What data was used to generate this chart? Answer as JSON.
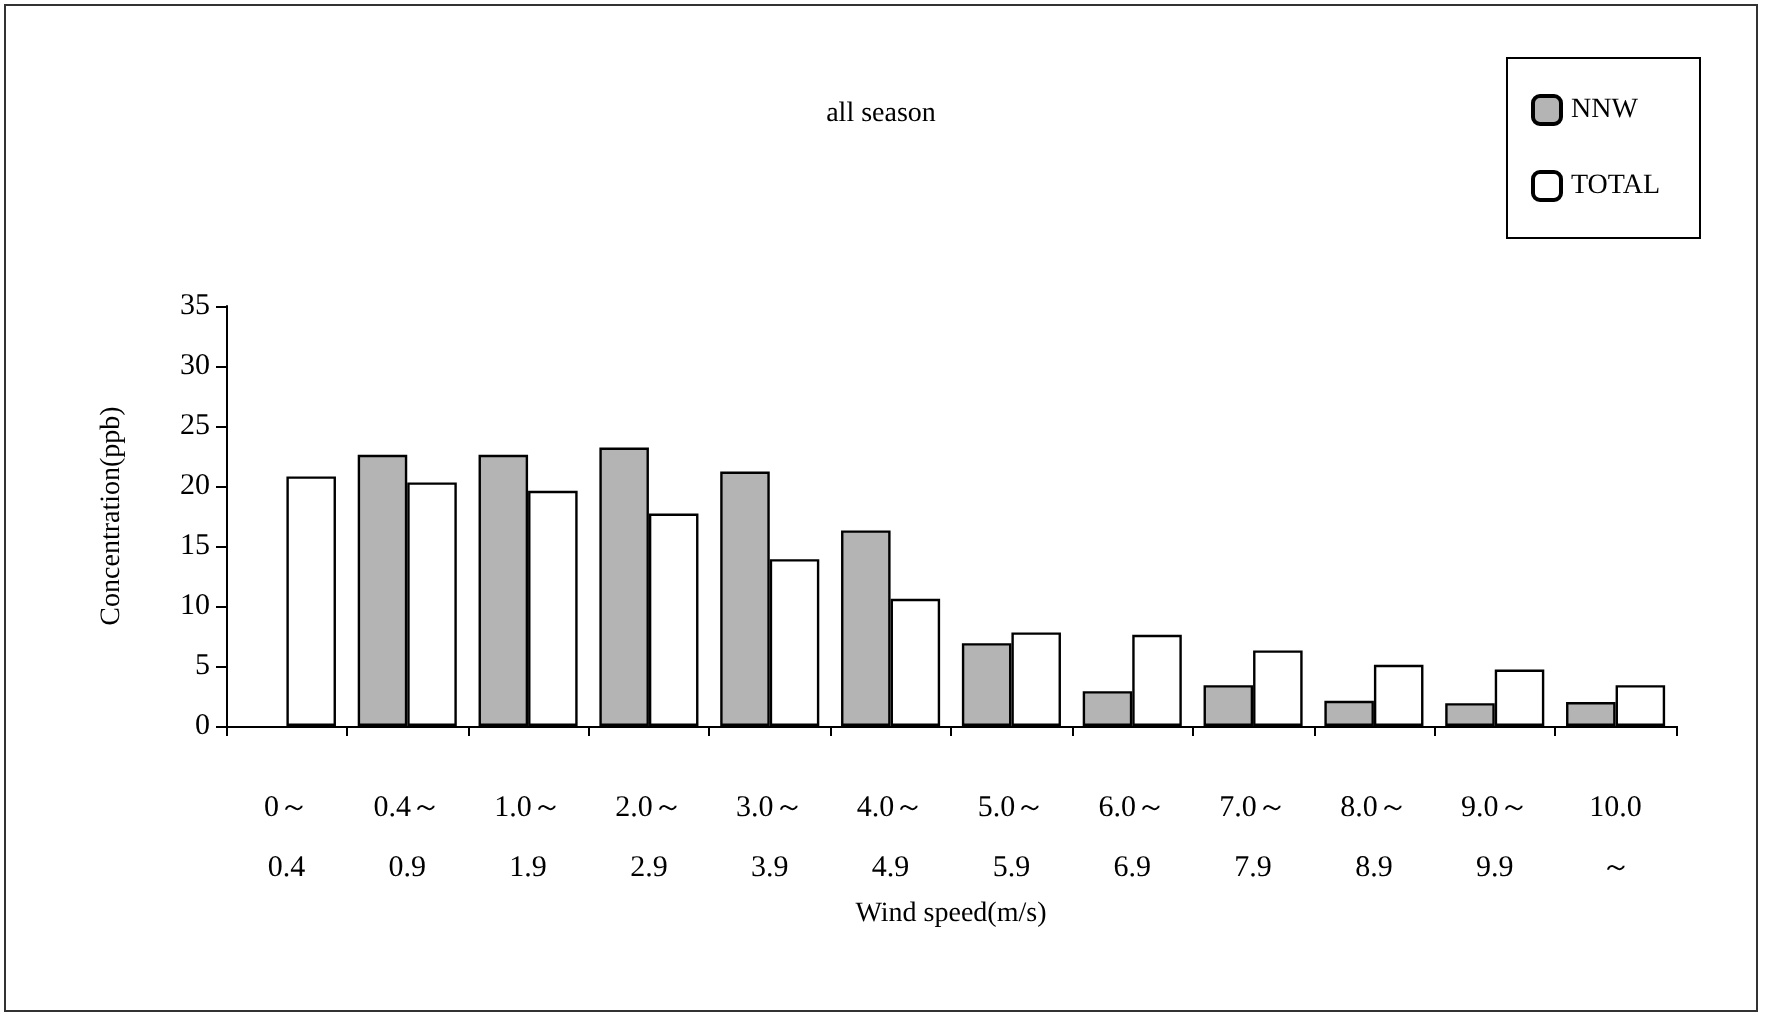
{
  "chart_data": {
    "type": "bar",
    "title": "all season",
    "xlabel": "Wind speed(m/s)",
    "ylabel": "Concentration(ppb)",
    "categories": [
      "0～\n0.4",
      "0.4～\n0.9",
      "1.0～\n1.9",
      "2.0～\n2.9",
      "3.0～\n3.9",
      "4.0～\n4.9",
      "5.0～\n5.9",
      "6.0～\n6.9",
      "7.0～\n7.9",
      "8.0～\n8.9",
      "9.0～\n9.9",
      "10.0\n～"
    ],
    "series": [
      {
        "name": "NNW",
        "color": "#b4b4b4",
        "values": [
          null,
          22.6,
          22.6,
          23.2,
          21.2,
          16.3,
          6.9,
          2.9,
          3.4,
          2.1,
          1.9,
          2.0
        ]
      },
      {
        "name": "TOTAL",
        "color": "#ffffff",
        "values": [
          20.8,
          20.3,
          19.6,
          17.7,
          13.9,
          10.6,
          7.8,
          7.6,
          6.3,
          5.1,
          4.7,
          3.4
        ]
      }
    ],
    "ylim": [
      0,
      35
    ],
    "yticks": [
      0,
      5,
      10,
      15,
      20,
      25,
      30,
      35
    ],
    "grid": false,
    "legend": "top right"
  }
}
